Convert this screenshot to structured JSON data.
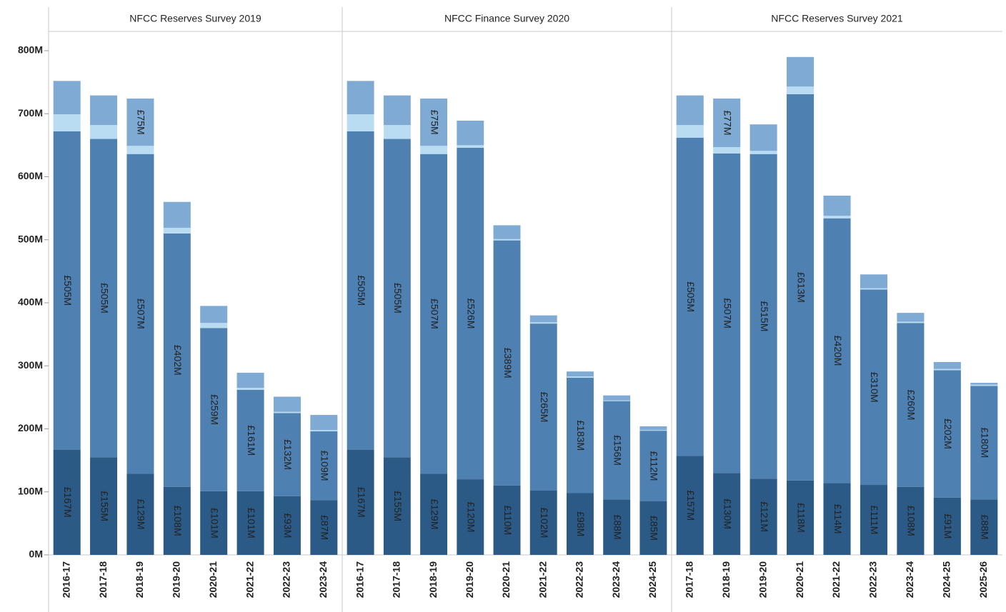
{
  "chart_data": [
    {
      "type": "bar",
      "title": "NFCC Reserves Survey 2019",
      "categories": [
        "2016-17",
        "2017-18",
        "2018-19",
        "2019-20",
        "2020-21",
        "2021-22",
        "2022-23",
        "2023-24"
      ],
      "ylim": [
        0,
        830
      ],
      "yticks": [
        {
          "value": 0,
          "label": "0M"
        },
        {
          "value": 100,
          "label": "100M"
        },
        {
          "value": 200,
          "label": "200M"
        },
        {
          "value": 300,
          "label": "300M"
        },
        {
          "value": 400,
          "label": "400M"
        },
        {
          "value": 500,
          "label": "500M"
        },
        {
          "value": 600,
          "label": "600M"
        },
        {
          "value": 700,
          "label": "700M"
        },
        {
          "value": 800,
          "label": "800M"
        }
      ],
      "series": [
        {
          "color": "#2c5a87",
          "label_color": "#ffffff",
          "values": [
            167,
            155,
            129,
            108,
            101,
            101,
            93,
            87
          ],
          "value_labels": [
            "£167M",
            "£155M",
            "£129M",
            "£108M",
            "£101M",
            "£101M",
            "£93M",
            "£87M"
          ]
        },
        {
          "color": "#4f80b2",
          "label_color": "#ffffff",
          "values": [
            505,
            505,
            507,
            402,
            259,
            161,
            132,
            109
          ],
          "value_labels": [
            "£505M",
            "£505M",
            "£507M",
            "£402M",
            "£259M",
            "£161M",
            "£132M",
            "£109M"
          ]
        },
        {
          "color": "#b9dcf3",
          "values": [
            27,
            22,
            13,
            9,
            8,
            3,
            2,
            2
          ]
        },
        {
          "color": "#7eaad4",
          "label_color": "#1a1a1a",
          "values": [
            53,
            47,
            75,
            41,
            27,
            24,
            24,
            24
          ],
          "value_labels": [
            null,
            null,
            "£75M",
            null,
            null,
            null,
            null,
            null
          ]
        }
      ]
    },
    {
      "type": "bar",
      "title": "NFCC Finance Survey 2020",
      "categories": [
        "2016-17",
        "2017-18",
        "2018-19",
        "2019-20",
        "2020-21",
        "2021-22",
        "2022-23",
        "2023-24",
        "2024-25"
      ],
      "series": [
        {
          "color": "#2c5a87",
          "label_color": "#ffffff",
          "values": [
            167,
            155,
            129,
            120,
            110,
            102,
            98,
            88,
            85
          ],
          "value_labels": [
            "£167M",
            "£155M",
            "£129M",
            "£120M",
            "£110M",
            "£102M",
            "£98M",
            "£88M",
            "£85M"
          ]
        },
        {
          "color": "#4f80b2",
          "label_color": "#ffffff",
          "values": [
            505,
            505,
            507,
            526,
            389,
            265,
            183,
            156,
            112
          ],
          "value_labels": [
            "£505M",
            "£505M",
            "£507M",
            "£526M",
            "£389M",
            "£265M",
            "£183M",
            "£156M",
            "£112M"
          ]
        },
        {
          "color": "#b9dcf3",
          "values": [
            27,
            22,
            13,
            4,
            2,
            2,
            2,
            1,
            1
          ]
        },
        {
          "color": "#7eaad4",
          "label_color": "#1a1a1a",
          "values": [
            53,
            47,
            75,
            39,
            22,
            11,
            8,
            8,
            6
          ],
          "value_labels": [
            null,
            null,
            "£75M",
            null,
            null,
            null,
            null,
            null,
            null
          ]
        }
      ]
    },
    {
      "type": "bar",
      "title": "NFCC Reserves Survey 2021",
      "categories": [
        "2017-18",
        "2018-19",
        "2019-20",
        "2020-21",
        "2021-22",
        "2022-23",
        "2023-24",
        "2024-25",
        "2025-26"
      ],
      "series": [
        {
          "color": "#2c5a87",
          "label_color": "#ffffff",
          "values": [
            157,
            130,
            121,
            118,
            114,
            111,
            108,
            91,
            88
          ],
          "value_labels": [
            "£157M",
            "£130M",
            "£121M",
            "£118M",
            "£114M",
            "£111M",
            "£108M",
            "£91M",
            "£88M"
          ]
        },
        {
          "color": "#4f80b2",
          "label_color": "#ffffff",
          "values": [
            505,
            507,
            515,
            613,
            420,
            310,
            260,
            202,
            180
          ],
          "value_labels": [
            "£505M",
            "£507M",
            "£515M",
            "£613M",
            "£420M",
            "£310M",
            "£260M",
            "£202M",
            "£180M"
          ]
        },
        {
          "color": "#b9dcf3",
          "values": [
            20,
            10,
            5,
            12,
            4,
            2,
            2,
            2,
            2
          ]
        },
        {
          "color": "#7eaad4",
          "label_color": "#1a1a1a",
          "values": [
            47,
            77,
            42,
            47,
            32,
            22,
            14,
            11,
            3
          ],
          "value_labels": [
            null,
            "£77M",
            null,
            null,
            null,
            null,
            null,
            null,
            null
          ]
        }
      ]
    }
  ]
}
